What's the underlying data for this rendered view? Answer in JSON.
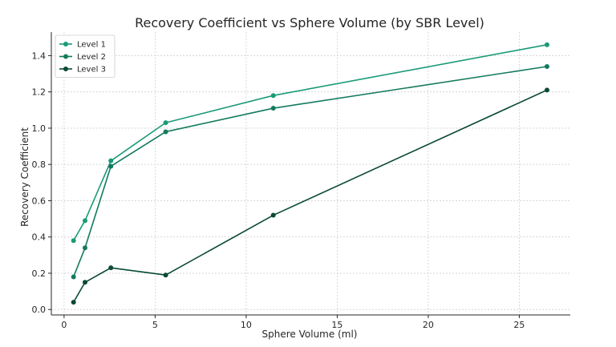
{
  "chart_data": {
    "type": "line",
    "title": "Recovery Coefficient vs Sphere Volume (by SBR Level)",
    "xlabel": "Sphere Volume (ml)",
    "ylabel": "Recovery Coefficient",
    "xlim": [
      -0.7,
      27.8
    ],
    "ylim": [
      -0.03,
      1.53
    ],
    "xticks": [
      0,
      5,
      10,
      15,
      20,
      25
    ],
    "yticks": [
      0.0,
      0.2,
      0.4,
      0.6,
      0.8,
      1.0,
      1.2,
      1.4
    ],
    "grid": true,
    "legend_position": "top-left",
    "x": [
      0.52,
      1.15,
      2.57,
      5.58,
      11.49,
      26.52
    ],
    "series": [
      {
        "name": "Level 1",
        "color": "#1a9a77",
        "values": [
          0.38,
          0.49,
          0.82,
          1.03,
          1.18,
          1.46
        ]
      },
      {
        "name": "Level 2",
        "color": "#137a5e",
        "values": [
          0.18,
          0.34,
          0.79,
          0.98,
          1.11,
          1.34
        ]
      },
      {
        "name": "Level 3",
        "color": "#0b4a36",
        "values": [
          0.04,
          0.15,
          0.23,
          0.19,
          0.52,
          1.21
        ]
      }
    ]
  }
}
